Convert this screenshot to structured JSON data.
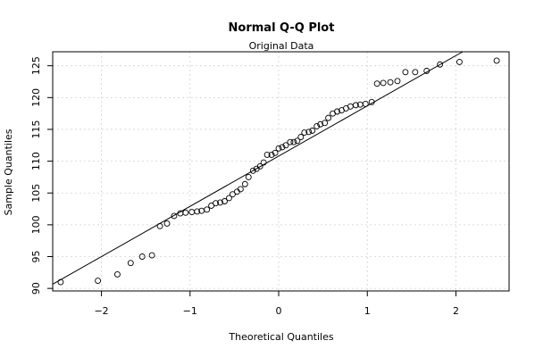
{
  "chart_data": {
    "type": "scatter",
    "title": "Normal Q-Q Plot",
    "subtitle": "Original Data",
    "xlabel": "Theoretical Quantiles",
    "ylabel": "Sample Quantiles",
    "xlim": [
      -2.55,
      2.6
    ],
    "ylim": [
      89.6,
      127.2
    ],
    "xticks": [
      -2,
      -1,
      0,
      1,
      2
    ],
    "yticks": [
      90,
      95,
      100,
      105,
      110,
      115,
      120,
      125
    ],
    "grid": true,
    "qq_line": {
      "slope": 7.9,
      "intercept": 110.8
    },
    "points": [
      [
        -2.46,
        91.0
      ],
      [
        -2.04,
        91.2
      ],
      [
        -1.82,
        92.2
      ],
      [
        -1.67,
        94.0
      ],
      [
        -1.54,
        95.0
      ],
      [
        -1.43,
        95.2
      ],
      [
        -1.34,
        99.8
      ],
      [
        -1.26,
        100.2
      ],
      [
        -1.18,
        101.4
      ],
      [
        -1.11,
        101.8
      ],
      [
        -1.05,
        101.9
      ],
      [
        -0.98,
        102.0
      ],
      [
        -0.92,
        102.1
      ],
      [
        -0.87,
        102.2
      ],
      [
        -0.81,
        102.4
      ],
      [
        -0.76,
        103.0
      ],
      [
        -0.71,
        103.4
      ],
      [
        -0.66,
        103.5
      ],
      [
        -0.61,
        103.7
      ],
      [
        -0.56,
        104.2
      ],
      [
        -0.52,
        104.8
      ],
      [
        -0.47,
        105.2
      ],
      [
        -0.43,
        105.6
      ],
      [
        -0.38,
        106.4
      ],
      [
        -0.34,
        107.5
      ],
      [
        -0.29,
        108.5
      ],
      [
        -0.25,
        108.8
      ],
      [
        -0.21,
        109.2
      ],
      [
        -0.17,
        109.8
      ],
      [
        -0.13,
        111.0
      ],
      [
        -0.08,
        111.0
      ],
      [
        -0.04,
        111.3
      ],
      [
        0.0,
        112.0
      ],
      [
        0.04,
        112.2
      ],
      [
        0.08,
        112.5
      ],
      [
        0.13,
        113.0
      ],
      [
        0.17,
        113.0
      ],
      [
        0.21,
        113.2
      ],
      [
        0.25,
        113.8
      ],
      [
        0.29,
        114.5
      ],
      [
        0.34,
        114.6
      ],
      [
        0.38,
        114.8
      ],
      [
        0.43,
        115.5
      ],
      [
        0.47,
        115.8
      ],
      [
        0.52,
        116.0
      ],
      [
        0.56,
        116.8
      ],
      [
        0.61,
        117.5
      ],
      [
        0.66,
        117.8
      ],
      [
        0.71,
        118.0
      ],
      [
        0.76,
        118.3
      ],
      [
        0.81,
        118.6
      ],
      [
        0.87,
        118.8
      ],
      [
        0.92,
        118.9
      ],
      [
        0.98,
        119.0
      ],
      [
        1.05,
        119.3
      ],
      [
        1.11,
        122.2
      ],
      [
        1.18,
        122.3
      ],
      [
        1.26,
        122.4
      ],
      [
        1.34,
        122.6
      ],
      [
        1.43,
        124.0
      ],
      [
        1.54,
        124.0
      ],
      [
        1.67,
        124.2
      ],
      [
        1.82,
        125.2
      ],
      [
        2.04,
        125.6
      ],
      [
        2.46,
        125.8
      ]
    ]
  }
}
